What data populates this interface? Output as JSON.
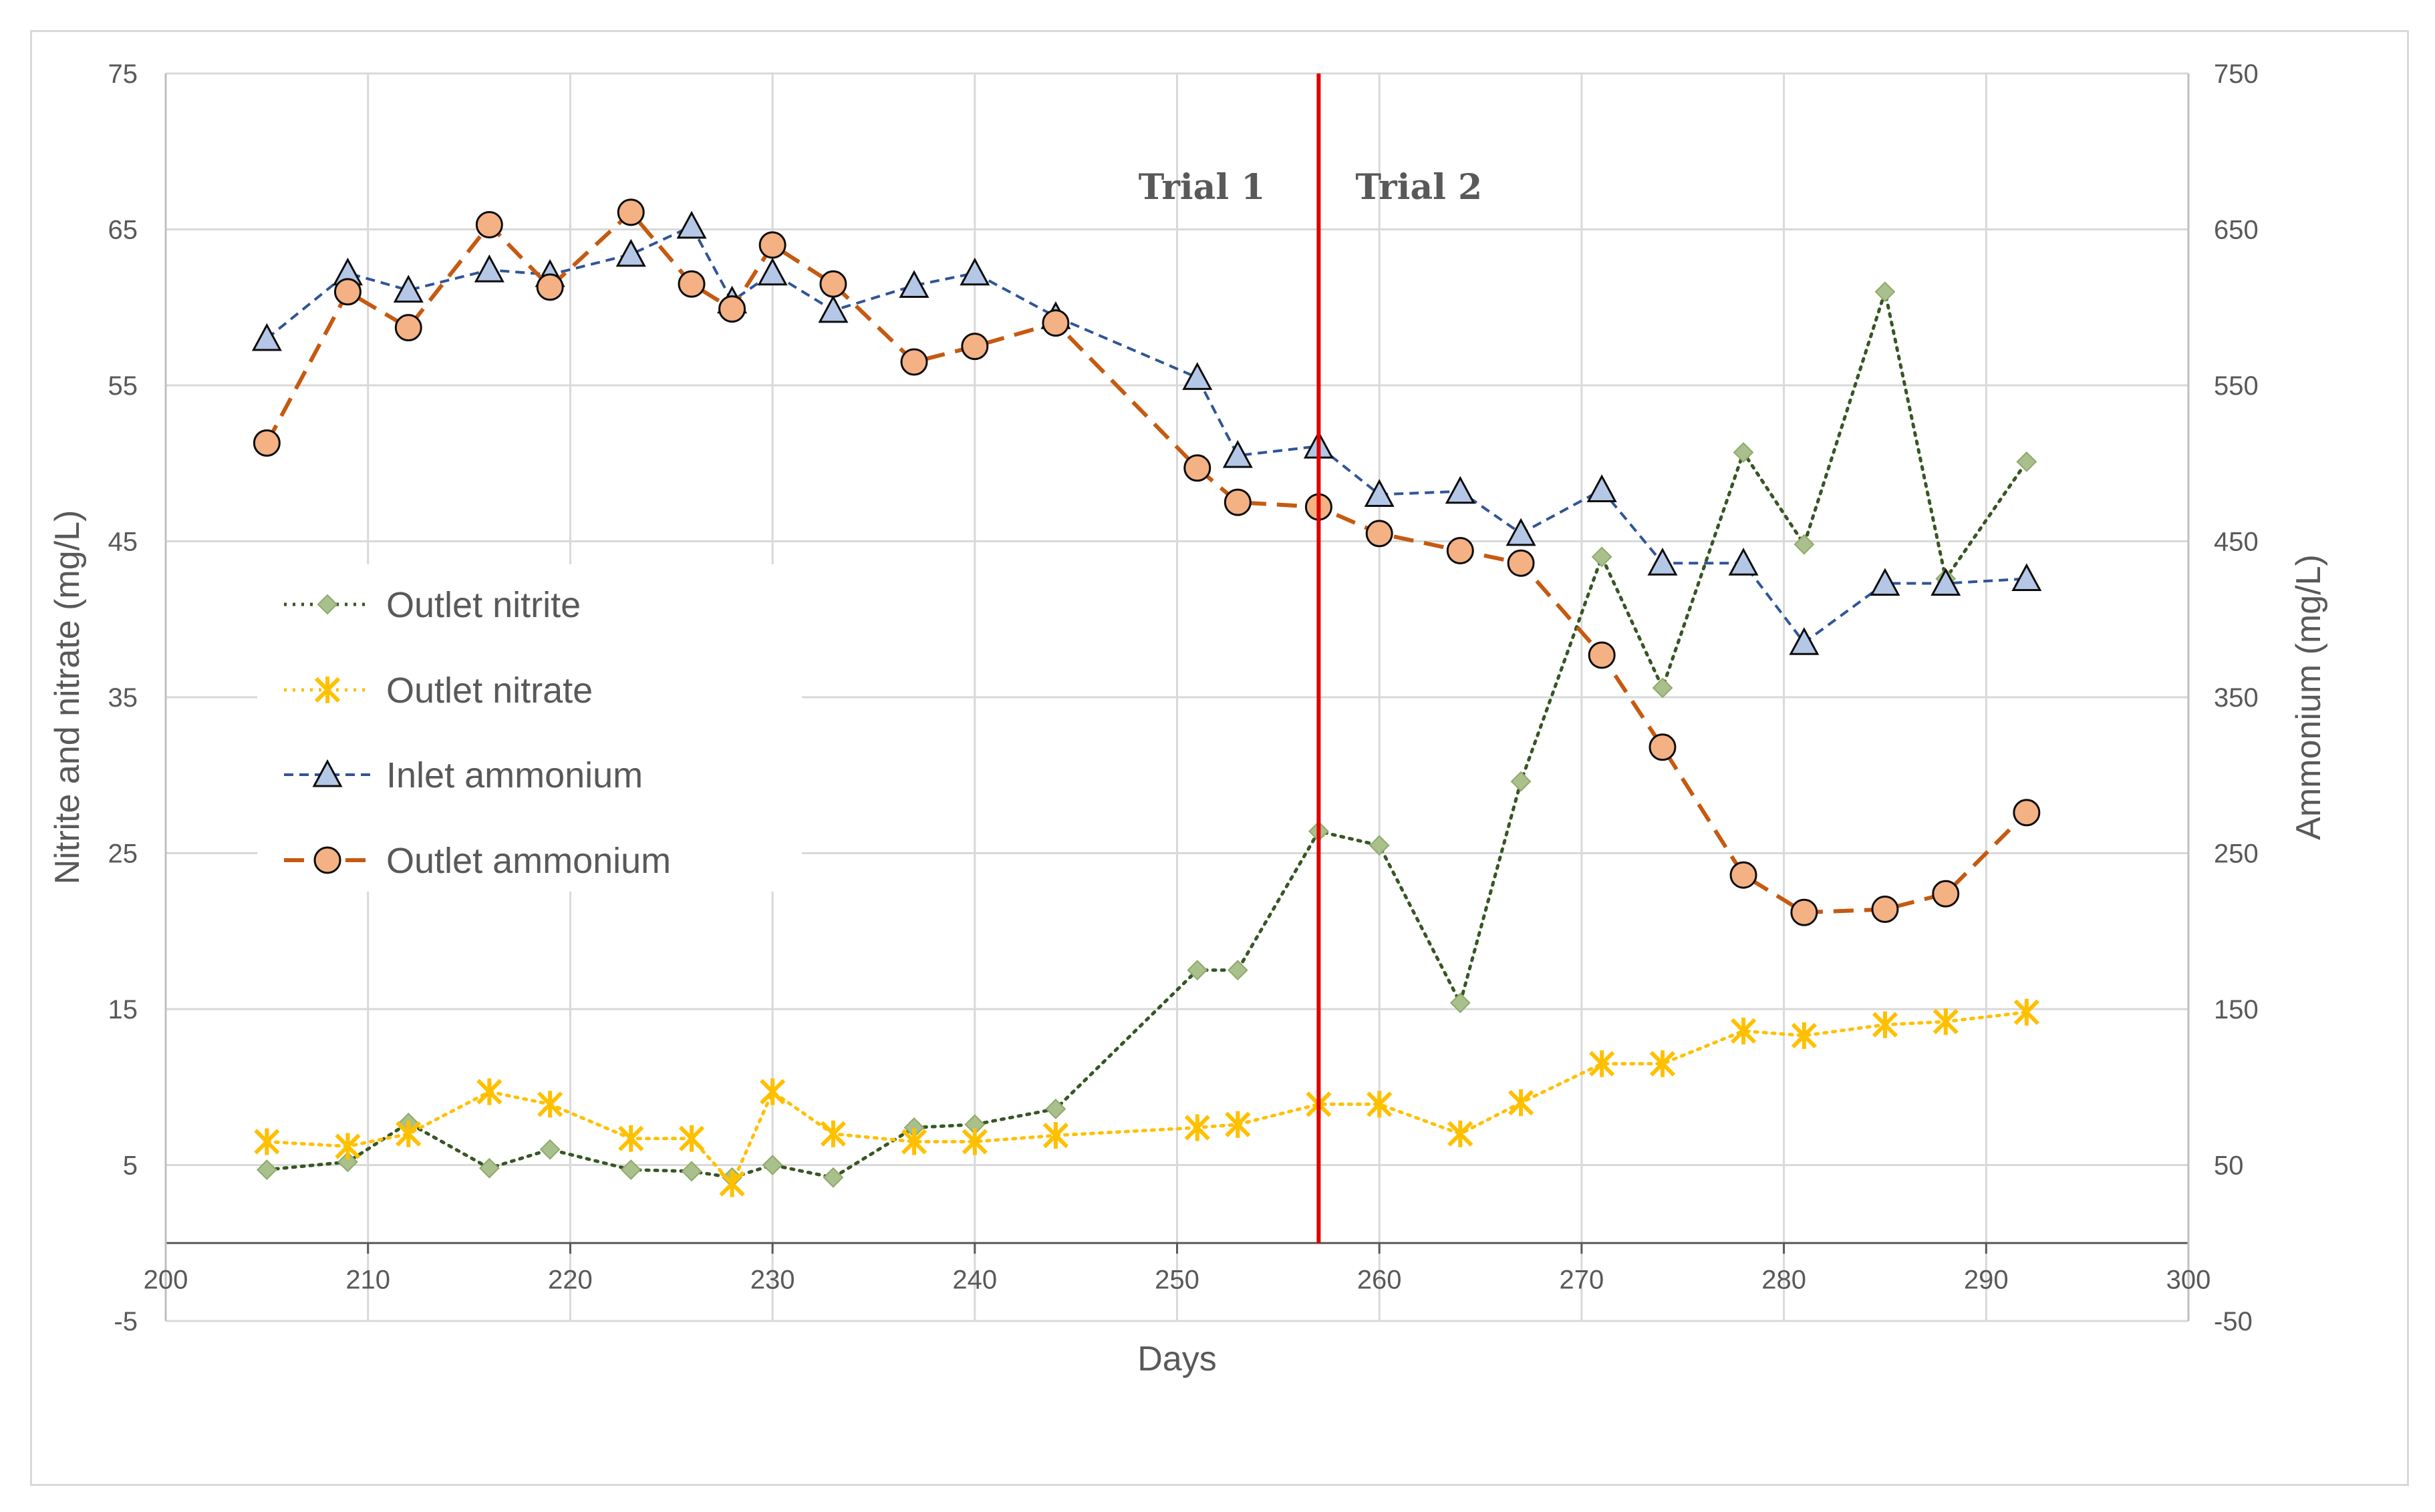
{
  "chart_data": {
    "type": "line",
    "title": "",
    "xlabel": "Days",
    "ylabel": "Nitrite and nitrate (mg/L)",
    "y2label": "Ammonium (mg/L)",
    "xlim": [
      200,
      300
    ],
    "ylim": [
      -5,
      75
    ],
    "y2lim": [
      -50,
      750
    ],
    "x_ticks": [
      200,
      210,
      220,
      230,
      240,
      250,
      260,
      270,
      280,
      290,
      300
    ],
    "y_ticks": [
      -5,
      5,
      15,
      25,
      35,
      45,
      55,
      65,
      75
    ],
    "y2_ticks": [
      -50,
      50,
      150,
      250,
      350,
      450,
      550,
      650,
      750
    ],
    "grid": true,
    "legend_position": "left-middle",
    "annotations": [
      {
        "text": "Trial 1",
        "x": 251
      },
      {
        "text": "Trial 2",
        "x": 262
      }
    ],
    "vertical_line": {
      "x": 257,
      "color": "#e00000"
    },
    "series": [
      {
        "name": "Outlet nitrite",
        "axis": "left",
        "color": "#375623",
        "marker_color": "#a9c08c",
        "marker": "diamond",
        "line": "dotted",
        "x": [
          205,
          209,
          212,
          216,
          219,
          223,
          226,
          228,
          230,
          233,
          237,
          240,
          244,
          251,
          253,
          257,
          260,
          264,
          267,
          271,
          274,
          278,
          281,
          285,
          288,
          292
        ],
        "y": [
          4.7,
          5.2,
          7.7,
          4.8,
          6.0,
          4.7,
          4.6,
          4.2,
          5.0,
          4.2,
          7.4,
          7.6,
          8.6,
          17.5,
          17.5,
          26.4,
          25.5,
          15.4,
          29.6,
          44.0,
          35.6,
          50.7,
          44.8,
          61.0,
          42.6,
          50.1
        ]
      },
      {
        "name": "Outlet nitrate",
        "axis": "left",
        "color": "#ffc000",
        "marker_color": "#ffc000",
        "marker": "star",
        "line": "dotted",
        "x": [
          205,
          209,
          212,
          216,
          219,
          223,
          226,
          228,
          230,
          233,
          237,
          240,
          244,
          251,
          253,
          257,
          260,
          264,
          267,
          271,
          274,
          278,
          281,
          285,
          288,
          292
        ],
        "y": [
          6.5,
          6.2,
          7.0,
          9.7,
          8.9,
          6.7,
          6.7,
          3.8,
          9.7,
          7.0,
          6.5,
          6.5,
          6.9,
          7.4,
          7.6,
          8.9,
          8.9,
          7.0,
          9.0,
          11.5,
          11.5,
          13.6,
          13.3,
          14.0,
          14.2,
          14.8
        ]
      },
      {
        "name": "Inlet ammonium",
        "axis": "right",
        "color": "#2f5597",
        "marker_color": "#b4c7e7",
        "marker": "triangle",
        "line": "dashed",
        "x": [
          205,
          209,
          212,
          216,
          219,
          223,
          226,
          228,
          230,
          233,
          237,
          240,
          244,
          251,
          253,
          257,
          260,
          264,
          267,
          271,
          274,
          278,
          281,
          285,
          288,
          292
        ],
        "y": [
          580,
          622,
          611,
          624,
          621,
          634,
          652,
          604,
          622,
          598,
          614,
          622,
          594,
          555,
          505,
          511,
          480,
          482,
          455,
          483,
          436,
          436,
          385,
          423,
          423,
          426
        ]
      },
      {
        "name": "Outlet ammonium",
        "axis": "right",
        "color": "#c55a11",
        "marker_color": "#f4b183",
        "marker": "circle",
        "line": "longdash",
        "x": [
          205,
          209,
          212,
          216,
          219,
          223,
          226,
          228,
          230,
          233,
          237,
          240,
          244,
          251,
          253,
          257,
          260,
          264,
          267,
          271,
          274,
          278,
          281,
          285,
          288,
          292
        ],
        "y": [
          513,
          610,
          587,
          653,
          613,
          661,
          615,
          599,
          640,
          615,
          565,
          575,
          590,
          497,
          475,
          472,
          455,
          444,
          436,
          377,
          318,
          236,
          212,
          214,
          224,
          276
        ]
      }
    ]
  }
}
